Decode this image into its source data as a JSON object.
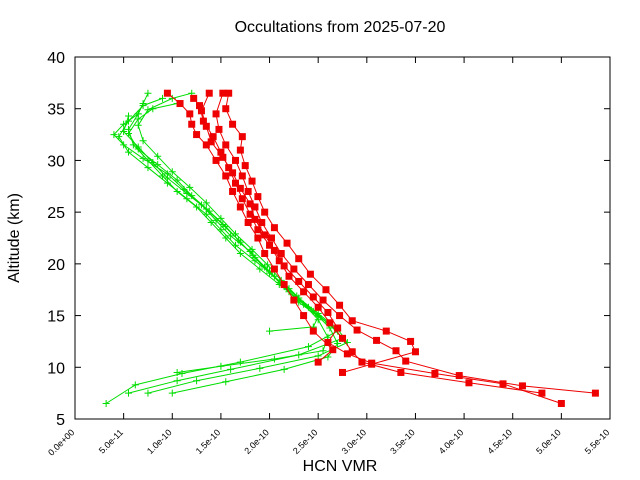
{
  "chart_data": {
    "type": "line",
    "title": "Occultations from 2025-07-20",
    "xlabel": "HCN VMR",
    "ylabel": "Altitude (km)",
    "xlim": [
      0,
      5.5e-10
    ],
    "ylim": [
      5,
      40
    ],
    "grid": false,
    "legend": "none",
    "x_ticks": [
      {
        "v": 0,
        "label": "0.0e+00"
      },
      {
        "v": 5e-11,
        "label": "5.0e-11"
      },
      {
        "v": 1e-10,
        "label": "1.0e-10"
      },
      {
        "v": 1.5e-10,
        "label": "1.5e-10"
      },
      {
        "v": 2e-10,
        "label": "2.0e-10"
      },
      {
        "v": 2.5e-10,
        "label": "2.5e-10"
      },
      {
        "v": 3e-10,
        "label": "3.0e-10"
      },
      {
        "v": 3.5e-10,
        "label": "3.5e-10"
      },
      {
        "v": 4e-10,
        "label": "4.0e-10"
      },
      {
        "v": 4.5e-10,
        "label": "4.5e-10"
      },
      {
        "v": 5e-10,
        "label": "5.0e-10"
      },
      {
        "v": 5.5e-10,
        "label": "5.5e-10"
      }
    ],
    "y_ticks": [
      {
        "v": 5,
        "label": "5"
      },
      {
        "v": 10,
        "label": "10"
      },
      {
        "v": 15,
        "label": "15"
      },
      {
        "v": 20,
        "label": "20"
      },
      {
        "v": 25,
        "label": "25"
      },
      {
        "v": 30,
        "label": "30"
      },
      {
        "v": 35,
        "label": "35"
      },
      {
        "v": 40,
        "label": "40"
      }
    ],
    "series": [
      {
        "color": "#00dd00",
        "marker": "plus",
        "points": [
          [
            3.2e-11,
            6.5
          ],
          [
            6.2e-11,
            8.3
          ],
          [
            1.1e-10,
            9.4
          ],
          [
            1.7e-10,
            10.5
          ],
          [
            2.4e-10,
            12.0
          ],
          [
            2.7e-10,
            13.5
          ],
          [
            2.5e-10,
            15.0
          ],
          [
            2.3e-10,
            16.5
          ],
          [
            2.1e-10,
            18.0
          ],
          [
            1.9e-10,
            19.5
          ],
          [
            1.7e-10,
            21.0
          ],
          [
            1.55e-10,
            22.5
          ],
          [
            1.4e-10,
            24.0
          ],
          [
            1.25e-10,
            25.5
          ],
          [
            1.05e-10,
            27.0
          ],
          [
            9e-11,
            28.5
          ],
          [
            7.5e-11,
            30.0
          ],
          [
            6e-11,
            31.5
          ],
          [
            5.5e-11,
            33.0
          ],
          [
            6.5e-11,
            34.5
          ],
          [
            7.5e-11,
            36.5
          ]
        ]
      },
      {
        "color": "#00dd00",
        "marker": "plus",
        "points": [
          [
            5.5e-11,
            7.5
          ],
          [
            1.05e-10,
            8.7
          ],
          [
            1.6e-10,
            9.8
          ],
          [
            2.3e-10,
            11.2
          ],
          [
            2.75e-10,
            12.8
          ],
          [
            2.6e-10,
            14.3
          ],
          [
            2.4e-10,
            15.8
          ],
          [
            2.2e-10,
            17.3
          ],
          [
            2.05e-10,
            18.8
          ],
          [
            1.85e-10,
            20.3
          ],
          [
            1.65e-10,
            21.8
          ],
          [
            1.5e-10,
            23.3
          ],
          [
            1.35e-10,
            24.8
          ],
          [
            1.15e-10,
            26.3
          ],
          [
            9.5e-11,
            27.8
          ],
          [
            7.5e-11,
            29.3
          ],
          [
            5.5e-11,
            30.8
          ],
          [
            4.5e-11,
            32.3
          ],
          [
            5.5e-11,
            33.8
          ],
          [
            7e-11,
            35.3
          ],
          [
            9e-11,
            36.0
          ]
        ]
      },
      {
        "color": "#00dd00",
        "marker": "plus",
        "points": [
          [
            7.5e-11,
            7.5
          ],
          [
            1.25e-10,
            8.7
          ],
          [
            1.9e-10,
            9.9
          ],
          [
            2.5e-10,
            11.1
          ],
          [
            2.8e-10,
            12.4
          ],
          [
            2.7e-10,
            13.7
          ],
          [
            2.5e-10,
            15.2
          ],
          [
            2.3e-10,
            16.7
          ],
          [
            2.1e-10,
            18.2
          ],
          [
            1.95e-10,
            19.7
          ],
          [
            1.8e-10,
            21.2
          ],
          [
            1.6e-10,
            22.7
          ],
          [
            1.45e-10,
            24.2
          ],
          [
            1.3e-10,
            25.7
          ],
          [
            1.12e-10,
            27.2
          ],
          [
            9.5e-11,
            28.7
          ],
          [
            7e-11,
            30.2
          ],
          [
            5e-11,
            31.5
          ],
          [
            4e-11,
            32.5
          ],
          [
            5e-11,
            33.5
          ],
          [
            6.5e-11,
            34.5
          ],
          [
            7e-11,
            35.5
          ]
        ]
      },
      {
        "color": "#00dd00",
        "marker": "plus",
        "points": [
          [
            1.05e-10,
            9.5
          ],
          [
            1.5e-10,
            10.1
          ],
          [
            2.05e-10,
            10.8
          ],
          [
            2.55e-10,
            11.6
          ],
          [
            2.6e-10,
            12.9
          ],
          [
            2.5e-10,
            14.6
          ],
          [
            2.35e-10,
            16.1
          ],
          [
            2.2e-10,
            17.6
          ],
          [
            2e-10,
            19.1
          ],
          [
            1.85e-10,
            20.6
          ],
          [
            1.7e-10,
            22.1
          ],
          [
            1.55e-10,
            23.6
          ],
          [
            1.38e-10,
            25.1
          ],
          [
            1.2e-10,
            26.6
          ],
          [
            1.05e-10,
            28.1
          ],
          [
            8.5e-11,
            29.6
          ],
          [
            6.5e-11,
            31.1
          ],
          [
            5.5e-11,
            32.6
          ],
          [
            6.5e-11,
            34.0
          ],
          [
            8e-11,
            35.0
          ],
          [
            1.05e-10,
            35.5
          ]
        ]
      },
      {
        "color": "#00dd00",
        "marker": "plus",
        "points": [
          [
            1e-10,
            7.5
          ],
          [
            1.55e-10,
            8.6
          ],
          [
            2.15e-10,
            9.8
          ],
          [
            2.6e-10,
            11.0
          ],
          [
            2.7e-10,
            12.3
          ],
          [
            2.62e-10,
            13.8
          ],
          [
            2.45e-10,
            15.4
          ],
          [
            2.28e-10,
            16.9
          ],
          [
            2.12e-10,
            18.4
          ],
          [
            1.98e-10,
            19.9
          ],
          [
            1.82e-10,
            21.4
          ],
          [
            1.65e-10,
            22.9
          ],
          [
            1.5e-10,
            24.4
          ],
          [
            1.35e-10,
            25.9
          ],
          [
            1.18e-10,
            27.4
          ],
          [
            1e-10,
            28.9
          ],
          [
            8.5e-11,
            30.4
          ],
          [
            7e-11,
            31.9
          ],
          [
            6.5e-11,
            33.4
          ],
          [
            7.5e-11,
            34.9
          ],
          [
            1e-10,
            36.0
          ],
          [
            1.2e-10,
            36.5
          ]
        ]
      },
      {
        "color": "#00dd00",
        "marker": "plus",
        "points": [
          [
            2e-10,
            13.5
          ],
          [
            2.45e-10,
            13.9
          ],
          [
            2.5e-10,
            14.9
          ],
          [
            2.3e-10,
            16.3
          ],
          [
            2.15e-10,
            17.8
          ],
          [
            2e-10,
            19.3
          ],
          [
            1.83e-10,
            20.8
          ],
          [
            1.68e-10,
            22.3
          ],
          [
            1.52e-10,
            23.8
          ],
          [
            1.35e-10,
            25.3
          ],
          [
            1.15e-10,
            26.8
          ],
          [
            9.5e-11,
            28.3
          ],
          [
            8e-11,
            29.8
          ],
          [
            6.5e-11,
            31.3
          ],
          [
            5e-11,
            32.8
          ],
          [
            5.5e-11,
            34.3
          ]
        ]
      },
      {
        "color": "#ee0000",
        "marker": "square",
        "points": [
          [
            5e-10,
            6.5
          ],
          [
            4.4e-10,
            8.4
          ],
          [
            3.7e-10,
            9.4
          ],
          [
            3.05e-10,
            10.4
          ],
          [
            2.8e-10,
            11.3
          ],
          [
            2.6e-10,
            12.4
          ],
          [
            2.7e-10,
            13.8
          ],
          [
            2.6e-10,
            15.3
          ],
          [
            2.45e-10,
            16.8
          ],
          [
            2.3e-10,
            18.3
          ],
          [
            2.15e-10,
            19.8
          ],
          [
            2.05e-10,
            21.3
          ],
          [
            1.95e-10,
            22.8
          ],
          [
            1.85e-10,
            24.3
          ],
          [
            1.8e-10,
            25.8
          ],
          [
            1.7e-10,
            27.3
          ],
          [
            1.62e-10,
            28.8
          ],
          [
            1.52e-10,
            30.3
          ],
          [
            1.4e-10,
            31.8
          ],
          [
            1.35e-10,
            33.3
          ],
          [
            1.3e-10,
            34.8
          ],
          [
            1.38e-10,
            36.5
          ]
        ]
      },
      {
        "color": "#ee0000",
        "marker": "square",
        "points": [
          [
            4.8e-10,
            7.5
          ],
          [
            4.05e-10,
            8.5
          ],
          [
            3.35e-10,
            9.5
          ],
          [
            2.95e-10,
            10.5
          ],
          [
            2.85e-10,
            11.5
          ],
          [
            2.75e-10,
            12.8
          ],
          [
            2.62e-10,
            14.3
          ],
          [
            2.5e-10,
            15.8
          ],
          [
            2.35e-10,
            17.3
          ],
          [
            2.2e-10,
            18.8
          ],
          [
            2.1e-10,
            20.3
          ],
          [
            2e-10,
            21.8
          ],
          [
            1.88e-10,
            23.3
          ],
          [
            1.8e-10,
            24.8
          ],
          [
            1.72e-10,
            26.3
          ],
          [
            1.65e-10,
            27.8
          ],
          [
            1.58e-10,
            29.3
          ],
          [
            1.5e-10,
            30.8
          ],
          [
            1.42e-10,
            32.3
          ],
          [
            1.32e-10,
            33.8
          ],
          [
            1.28e-10,
            35.3
          ],
          [
            1.22e-10,
            36.0
          ]
        ]
      },
      {
        "color": "#ee0000",
        "marker": "square",
        "points": [
          [
            5.35e-10,
            7.5
          ],
          [
            4.6e-10,
            8.2
          ],
          [
            3.95e-10,
            9.2
          ],
          [
            3.4e-10,
            10.6
          ],
          [
            3.3e-10,
            11.6
          ],
          [
            3.1e-10,
            12.6
          ],
          [
            2.9e-10,
            13.6
          ],
          [
            2.72e-10,
            15.0
          ],
          [
            2.55e-10,
            16.5
          ],
          [
            2.4e-10,
            18.0
          ],
          [
            2.25e-10,
            19.5
          ],
          [
            2.12e-10,
            21.0
          ],
          [
            2.02e-10,
            22.5
          ],
          [
            1.92e-10,
            24.0
          ],
          [
            1.85e-10,
            25.5
          ],
          [
            1.78e-10,
            27.0
          ],
          [
            1.72e-10,
            28.5
          ],
          [
            1.65e-10,
            30.0
          ],
          [
            1.55e-10,
            31.5
          ],
          [
            1.48e-10,
            33.0
          ],
          [
            1.45e-10,
            34.5
          ],
          [
            1.52e-10,
            36.5
          ]
        ]
      },
      {
        "color": "#ee0000",
        "marker": "square",
        "points": [
          [
            2.75e-10,
            9.5
          ],
          [
            3.05e-10,
            10.3
          ],
          [
            3.5e-10,
            11.5
          ],
          [
            3.45e-10,
            12.5
          ],
          [
            3.2e-10,
            13.5
          ],
          [
            2.85e-10,
            14.5
          ],
          [
            2.72e-10,
            16.0
          ],
          [
            2.58e-10,
            17.5
          ],
          [
            2.42e-10,
            19.0
          ],
          [
            2.3e-10,
            20.5
          ],
          [
            2.18e-10,
            22.0
          ],
          [
            2.05e-10,
            23.5
          ],
          [
            1.95e-10,
            25.0
          ],
          [
            1.88e-10,
            26.5
          ],
          [
            1.82e-10,
            28.0
          ],
          [
            1.75e-10,
            29.5
          ],
          [
            1.7e-10,
            31.0
          ],
          [
            1.72e-10,
            32.3
          ],
          [
            1.62e-10,
            33.5
          ],
          [
            1.55e-10,
            35.0
          ],
          [
            1.58e-10,
            36.5
          ]
        ]
      },
      {
        "color": "#ee0000",
        "marker": "square",
        "points": [
          [
            2.5e-10,
            10.5
          ],
          [
            2.65e-10,
            11.7
          ],
          [
            2.45e-10,
            13.5
          ],
          [
            2.35e-10,
            15.0
          ],
          [
            2.25e-10,
            16.5
          ],
          [
            2.15e-10,
            18.0
          ],
          [
            2.05e-10,
            19.5
          ],
          [
            1.95e-10,
            21.0
          ],
          [
            1.88e-10,
            22.5
          ],
          [
            1.78e-10,
            24.0
          ],
          [
            1.7e-10,
            25.5
          ],
          [
            1.62e-10,
            27.0
          ],
          [
            1.55e-10,
            28.5
          ],
          [
            1.45e-10,
            30.0
          ],
          [
            1.35e-10,
            31.5
          ],
          [
            1.25e-10,
            32.5
          ],
          [
            1.2e-10,
            33.5
          ],
          [
            1.18e-10,
            34.5
          ],
          [
            1.08e-10,
            35.5
          ],
          [
            9.5e-11,
            36.5
          ]
        ]
      }
    ]
  }
}
